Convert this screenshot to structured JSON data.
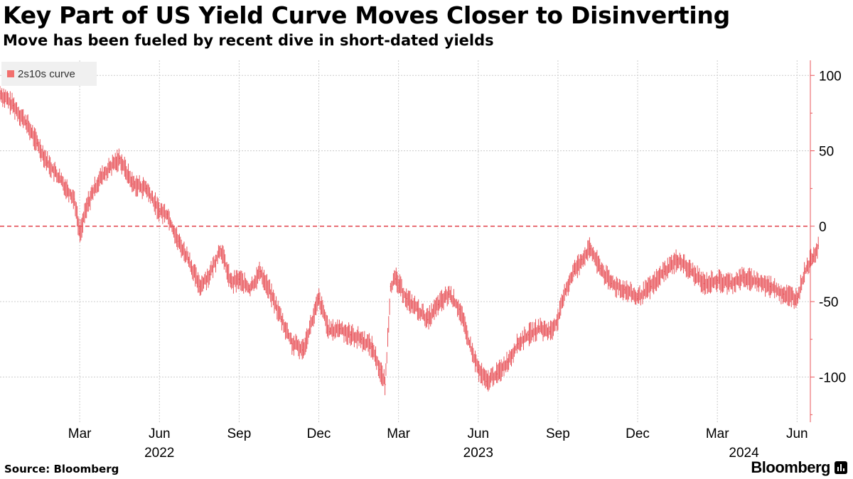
{
  "header": {
    "title": "Key Part of US Yield Curve Moves Closer to Disinverting",
    "subtitle": "Move has been fueled by recent dive in short-dated yields"
  },
  "legend": {
    "label": "2s10s curve",
    "color": "#f2706e"
  },
  "footer": {
    "source": "Source: Bloomberg",
    "brand": "Bloomberg"
  },
  "colors": {
    "series": "#e8545a",
    "axis": "#e8545a",
    "grid": "#cccccc",
    "zero_line": "#e0404a"
  },
  "chart_data": {
    "type": "line",
    "title": "Key Part of US Yield Curve Moves Closer to Disinverting",
    "subtitle": "Move has been fueled by recent dive in short-dated yields",
    "xlabel": "",
    "ylabel": "",
    "ylim": [
      -130,
      110
    ],
    "xlim": [
      0,
      30.5
    ],
    "y_axis_side": "right",
    "y_ticks": [
      100,
      50,
      0,
      -50,
      -100
    ],
    "reference_line": {
      "y": 0,
      "style": "dashed"
    },
    "x_ticks": [
      {
        "x": 3,
        "label": "Mar"
      },
      {
        "x": 6,
        "label": "Jun"
      },
      {
        "x": 9,
        "label": "Sep"
      },
      {
        "x": 12,
        "label": "Dec"
      },
      {
        "x": 15,
        "label": "Mar"
      },
      {
        "x": 18,
        "label": "Jun"
      },
      {
        "x": 21,
        "label": "Sep"
      },
      {
        "x": 24,
        "label": "Dec"
      },
      {
        "x": 27,
        "label": "Mar"
      },
      {
        "x": 30,
        "label": "Jun"
      }
    ],
    "year_labels": [
      {
        "x": 6,
        "label": "2022"
      },
      {
        "x": 18,
        "label": "2023"
      },
      {
        "x": 28,
        "label": "2024"
      }
    ],
    "series": [
      {
        "name": "2s10s curve",
        "x": [
          0,
          0.5,
          1,
          1.4,
          1.8,
          2.3,
          2.8,
          3.0,
          3.3,
          3.7,
          4.1,
          4.5,
          5.0,
          5.5,
          6.0,
          6.3,
          6.7,
          7.1,
          7.5,
          7.9,
          8.3,
          8.7,
          9.0,
          9.4,
          9.8,
          10.2,
          10.6,
          11.0,
          11.4,
          11.8,
          12.0,
          12.4,
          12.8,
          13.2,
          13.6,
          14.0,
          14.3,
          14.5,
          14.7,
          14.9,
          15.3,
          15.7,
          16.1,
          16.5,
          16.9,
          17.3,
          17.7,
          18.0,
          18.3,
          18.7,
          19.1,
          19.5,
          19.9,
          20.3,
          20.7,
          21.0,
          21.3,
          21.6,
          21.9,
          22.2,
          22.6,
          23.0,
          23.5,
          24.0,
          24.5,
          25.0,
          25.5,
          26.0,
          26.5,
          27.0,
          27.5,
          28.0,
          28.5,
          29.0,
          29.5,
          30.0,
          30.3,
          30.6,
          30.8
        ],
        "values": [
          88,
          80,
          68,
          55,
          42,
          30,
          18,
          -5,
          15,
          30,
          38,
          45,
          28,
          25,
          10,
          8,
          -10,
          -22,
          -40,
          -32,
          -15,
          -38,
          -35,
          -42,
          -30,
          -45,
          -62,
          -78,
          -82,
          -60,
          -48,
          -70,
          -68,
          -72,
          -75,
          -80,
          -95,
          -105,
          -40,
          -35,
          -48,
          -55,
          -62,
          -52,
          -45,
          -55,
          -80,
          -95,
          -103,
          -98,
          -90,
          -78,
          -72,
          -68,
          -70,
          -62,
          -42,
          -30,
          -22,
          -15,
          -28,
          -38,
          -42,
          -48,
          -40,
          -30,
          -22,
          -30,
          -38,
          -36,
          -38,
          -34,
          -37,
          -40,
          -45,
          -48,
          -30,
          -20,
          -13
        ]
      }
    ]
  }
}
